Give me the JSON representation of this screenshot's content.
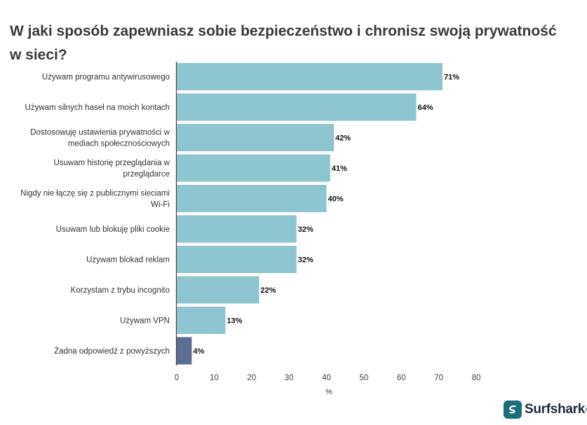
{
  "chart_data": {
    "type": "bar",
    "orientation": "horizontal",
    "title": "W jaki sposób zapewniasz sobie bezpieczeństwo i chronisz swoją prywatność w sieci?",
    "xlabel": "%",
    "ylabel": "",
    "xlim": [
      0,
      80
    ],
    "xticks": [
      "0",
      "10",
      "20",
      "30",
      "40",
      "50",
      "60",
      "70",
      "80"
    ],
    "grid": false,
    "categories": [
      [
        "Używam programu antywirusowego"
      ],
      [
        "Używam silnych haseł na moich kontach"
      ],
      [
        "Dostosowuję ustawienia prywatności w",
        "mediach społecznościowych"
      ],
      [
        "Usuwam historię przeglądania w",
        "przeglądarce"
      ],
      [
        "Nigdy nie łączę się z publicznymi sieciami",
        "Wi-Fi"
      ],
      [
        "Usuwam lub blokuję pliki cookie"
      ],
      [
        "Używam blokad reklam"
      ],
      [
        "Korzystam z trybu incognito"
      ],
      [
        "Używam VPN"
      ],
      [
        "Żadna odpowiedź z powyższych"
      ]
    ],
    "values": [
      71,
      64,
      42,
      41,
      40,
      32,
      32,
      22,
      13,
      4
    ],
    "data_labels": [
      "71%",
      "64%",
      "42%",
      "41%",
      "40%",
      "32%",
      "32%",
      "22%",
      "13%",
      "4%"
    ],
    "colors": [
      "#8ec6cf",
      "#8ec6cf",
      "#8ec6cf",
      "#8ec6cf",
      "#8ec6cf",
      "#8ec6cf",
      "#8ec6cf",
      "#8ec6cf",
      "#8ec6cf",
      "#5a6e94"
    ]
  },
  "branding": {
    "name": "Surfshark",
    "reg": "®",
    "mark_color": "#1c6e7a"
  }
}
